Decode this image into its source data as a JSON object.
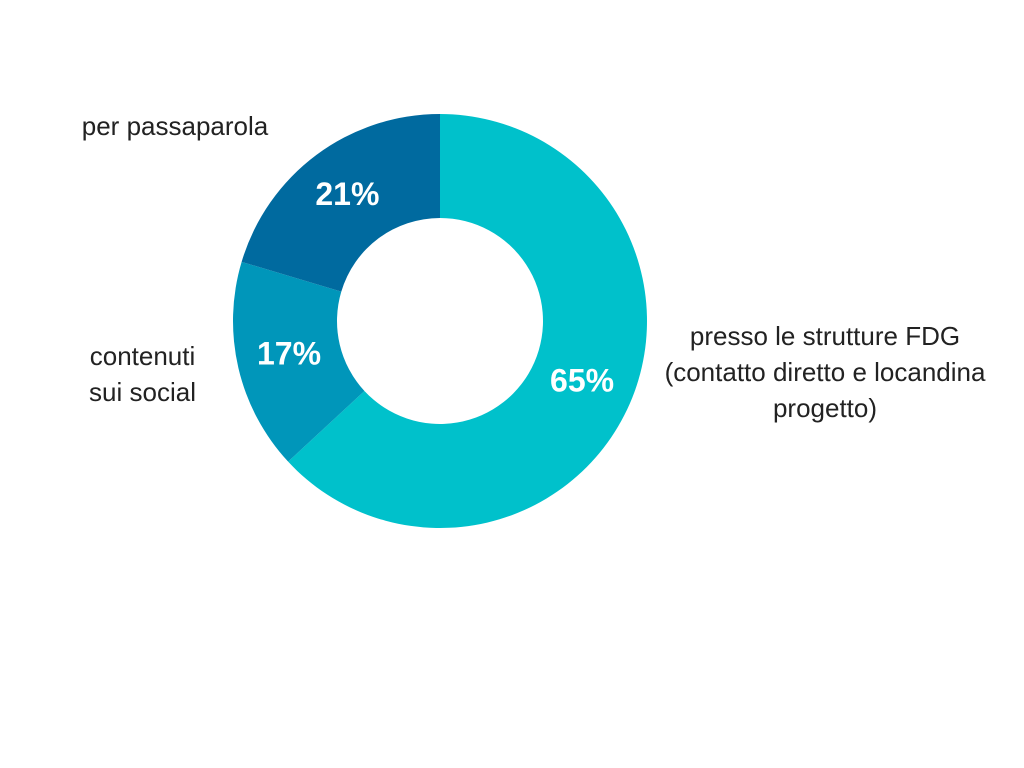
{
  "chart_data": {
    "type": "donut",
    "categories": [
      "presso le strutture FDG (contatto diretto e locandina progetto)",
      "contenuti sui social",
      "per passaparola"
    ],
    "values": [
      65,
      17,
      21
    ],
    "value_labels": [
      "65%",
      "17%",
      "21%"
    ],
    "colors": [
      "#00c1cb",
      "#0096ba",
      "#006a9f"
    ]
  }
}
